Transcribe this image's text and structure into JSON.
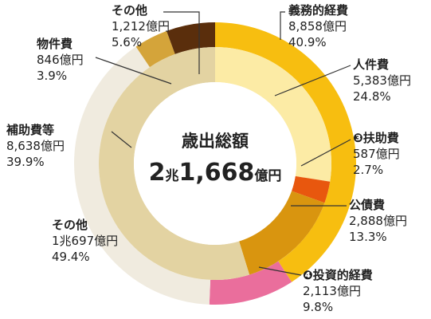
{
  "chart_data": {
    "type": "pie",
    "title": "歳出総額",
    "total_number": "2",
    "total_unit1": "兆",
    "total_number2": "1,668",
    "total_unit2": "億円",
    "outer_ring": [
      {
        "name": "義務的経費",
        "amount": "8,858億円",
        "percent": "40.9%",
        "value": 40.9,
        "color": "#F7BE10"
      },
      {
        "name": "❹投資的経費",
        "amount": "2,113億円",
        "percent": "9.8%",
        "value": 9.8,
        "color": "#EA6E9C"
      },
      {
        "name": "補助費等",
        "amount": "8,638億円",
        "percent": "39.9%",
        "value": 39.9,
        "color": "#F0EBDF"
      },
      {
        "name": "物件費",
        "amount": "846億円",
        "percent": "3.9%",
        "value": 3.9,
        "color": "#D4A43A"
      },
      {
        "name": "その他",
        "amount": "1,212億円",
        "percent": "5.6%",
        "value": 5.6,
        "color": "#5A2E0C"
      }
    ],
    "inner_ring": [
      {
        "name": "人件費",
        "amount": "5,383億円",
        "percent": "24.8%",
        "value": 24.8,
        "color": "#FCEBA5"
      },
      {
        "name": "❸扶助費",
        "amount": "587億円",
        "percent": "2.7%",
        "value": 2.7,
        "color": "#E8570E"
      },
      {
        "name": "公債費",
        "amount": "2,888億円",
        "percent": "13.3%",
        "value": 13.3,
        "color": "#D9950F"
      },
      {
        "name": "その他",
        "amount": "1兆697億円",
        "percent": "49.4%",
        "value": 49.4,
        "color": "#E3D3A2"
      }
    ]
  }
}
